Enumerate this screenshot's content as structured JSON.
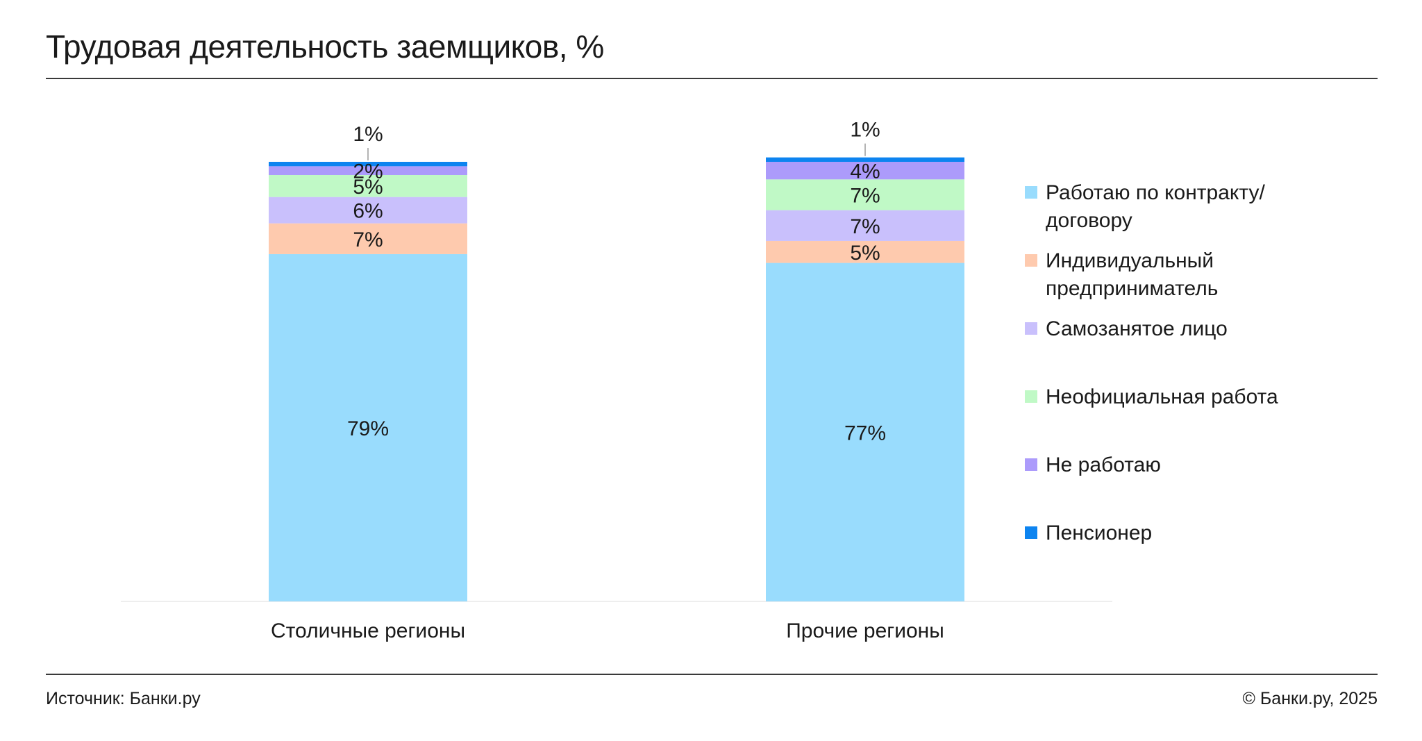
{
  "header": {
    "title": "Трудовая деятельность заемщиков, %"
  },
  "footer": {
    "source": "Источник: Банки.ру",
    "copyright": "© Банки.ру, 2025"
  },
  "chart_data": {
    "type": "bar",
    "stacked": true,
    "title": "Трудовая деятельность заемщиков, %",
    "xlabel": "",
    "ylabel": "",
    "ylim": [
      0,
      100
    ],
    "grid": false,
    "legend_position": "right",
    "categories": [
      "Столичные регионы",
      "Прочие регионы"
    ],
    "series": [
      {
        "name": "Работаю по контракту/договору",
        "values": [
          79,
          77
        ],
        "labels": [
          "79%",
          "77%"
        ],
        "color": "#99dcfd"
      },
      {
        "name": "Индивидуальный предприниматель",
        "values": [
          7,
          5
        ],
        "labels": [
          "7%",
          "5%"
        ],
        "color": "#fecaae"
      },
      {
        "name": "Самозанятое лицо",
        "values": [
          6,
          7
        ],
        "labels": [
          "6%",
          "7%"
        ],
        "color": "#c9c0fc"
      },
      {
        "name": "Неофициальная работа",
        "values": [
          5,
          7
        ],
        "labels": [
          "5%",
          "7%"
        ],
        "color": "#c0f9c6"
      },
      {
        "name": "Не работаю",
        "values": [
          2,
          4
        ],
        "labels": [
          "2%",
          "4%"
        ],
        "color": "#ac9bfb"
      },
      {
        "name": "Пенсионер",
        "values": [
          1,
          1
        ],
        "labels": [
          "1%",
          "1%"
        ],
        "color": "#0d84f0"
      }
    ]
  }
}
